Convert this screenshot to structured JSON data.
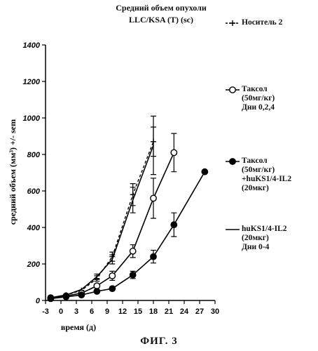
{
  "chart_data": {
    "type": "line",
    "title": "Средний объем опухоли",
    "subtitle": "LLC/KSA (T) (sc)",
    "xlabel": "время (д)",
    "ylabel": "средний объем (мм³) +/- sem",
    "xlim": [
      -3,
      30
    ],
    "ylim": [
      0,
      1400
    ],
    "x_ticks": [
      -3,
      0,
      3,
      6,
      9,
      12,
      15,
      18,
      21,
      24,
      27,
      30
    ],
    "y_ticks": [
      0,
      200,
      400,
      600,
      800,
      1000,
      1200,
      1400
    ],
    "grid": false,
    "legend_position": "right",
    "series": [
      {
        "name": "Носитель 2",
        "legend_lines": [
          "Носитель 2"
        ],
        "marker": "plus",
        "line_style": "dashed",
        "x": [
          -2,
          1,
          4,
          7,
          10,
          14,
          18
        ],
        "y": [
          15,
          30,
          55,
          120,
          240,
          580,
          870
        ],
        "err": [
          0,
          0,
          0,
          15,
          25,
          60,
          80
        ]
      },
      {
        "name": "Таксол (50мг/кг) Дни 0,2,4",
        "legend_lines": [
          "Таксол",
          "(50мг/кг)",
          "Дни 0,2,4"
        ],
        "marker": "open-circle",
        "line_style": "solid",
        "x": [
          -2,
          1,
          4,
          7,
          10,
          14,
          18,
          22
        ],
        "y": [
          15,
          25,
          40,
          80,
          135,
          270,
          560,
          810
        ],
        "err": [
          0,
          0,
          0,
          10,
          25,
          35,
          110,
          105
        ]
      },
      {
        "name": "Таксол (50мг/кг) +huKS1/4-IL2 (20мкг)",
        "legend_lines": [
          "Таксол",
          "(50мг/кг)",
          "+huKS1/4-IL2",
          "(20мкг)"
        ],
        "marker": "filled-circle",
        "line_style": "solid",
        "x": [
          -2,
          1,
          4,
          7,
          10,
          14,
          18,
          22,
          28
        ],
        "y": [
          10,
          20,
          30,
          50,
          65,
          140,
          240,
          415,
          705
        ],
        "err": [
          0,
          0,
          0,
          0,
          0,
          20,
          35,
          65,
          0
        ]
      },
      {
        "name": "huKS1/4-IL2 (20мкг) Дни 0-4",
        "legend_lines": [
          "huKS1/4-IL2",
          "(20мкг)",
          "Дни 0-4"
        ],
        "marker": "none",
        "line_style": "solid",
        "x": [
          -2,
          1,
          4,
          7,
          10,
          14,
          18
        ],
        "y": [
          15,
          30,
          60,
          130,
          225,
          550,
          850
        ],
        "err": [
          0,
          0,
          0,
          15,
          25,
          70,
          160
        ]
      }
    ]
  },
  "figure_label": "ФИГ. 3"
}
